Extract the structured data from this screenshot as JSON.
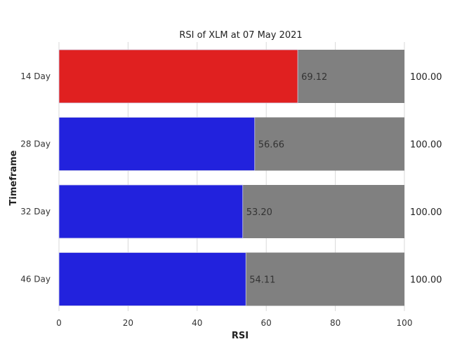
{
  "chart_data": {
    "type": "bar",
    "orientation": "horizontal",
    "stacked": true,
    "title": "RSI of XLM at 07 May 2021",
    "xlabel": "RSI",
    "ylabel": "Timeframe",
    "xlim": [
      0,
      100
    ],
    "x_ticks": [
      0,
      20,
      40,
      60,
      80,
      100
    ],
    "categories": [
      "14 Day",
      "28 Day",
      "32 Day",
      "46 Day"
    ],
    "values": [
      69.12,
      56.66,
      53.2,
      54.11
    ],
    "value_labels": [
      "69.12",
      "56.66",
      "53.20",
      "54.11"
    ],
    "totals": [
      100.0,
      100.0,
      100.0,
      100.0
    ],
    "total_labels": [
      "100.00",
      "100.00",
      "100.00",
      "100.00"
    ],
    "bar_colors": [
      "#e02020",
      "#2222dd",
      "#2222dd",
      "#2222dd"
    ],
    "background_bar_color": "#808080",
    "grid": true
  }
}
